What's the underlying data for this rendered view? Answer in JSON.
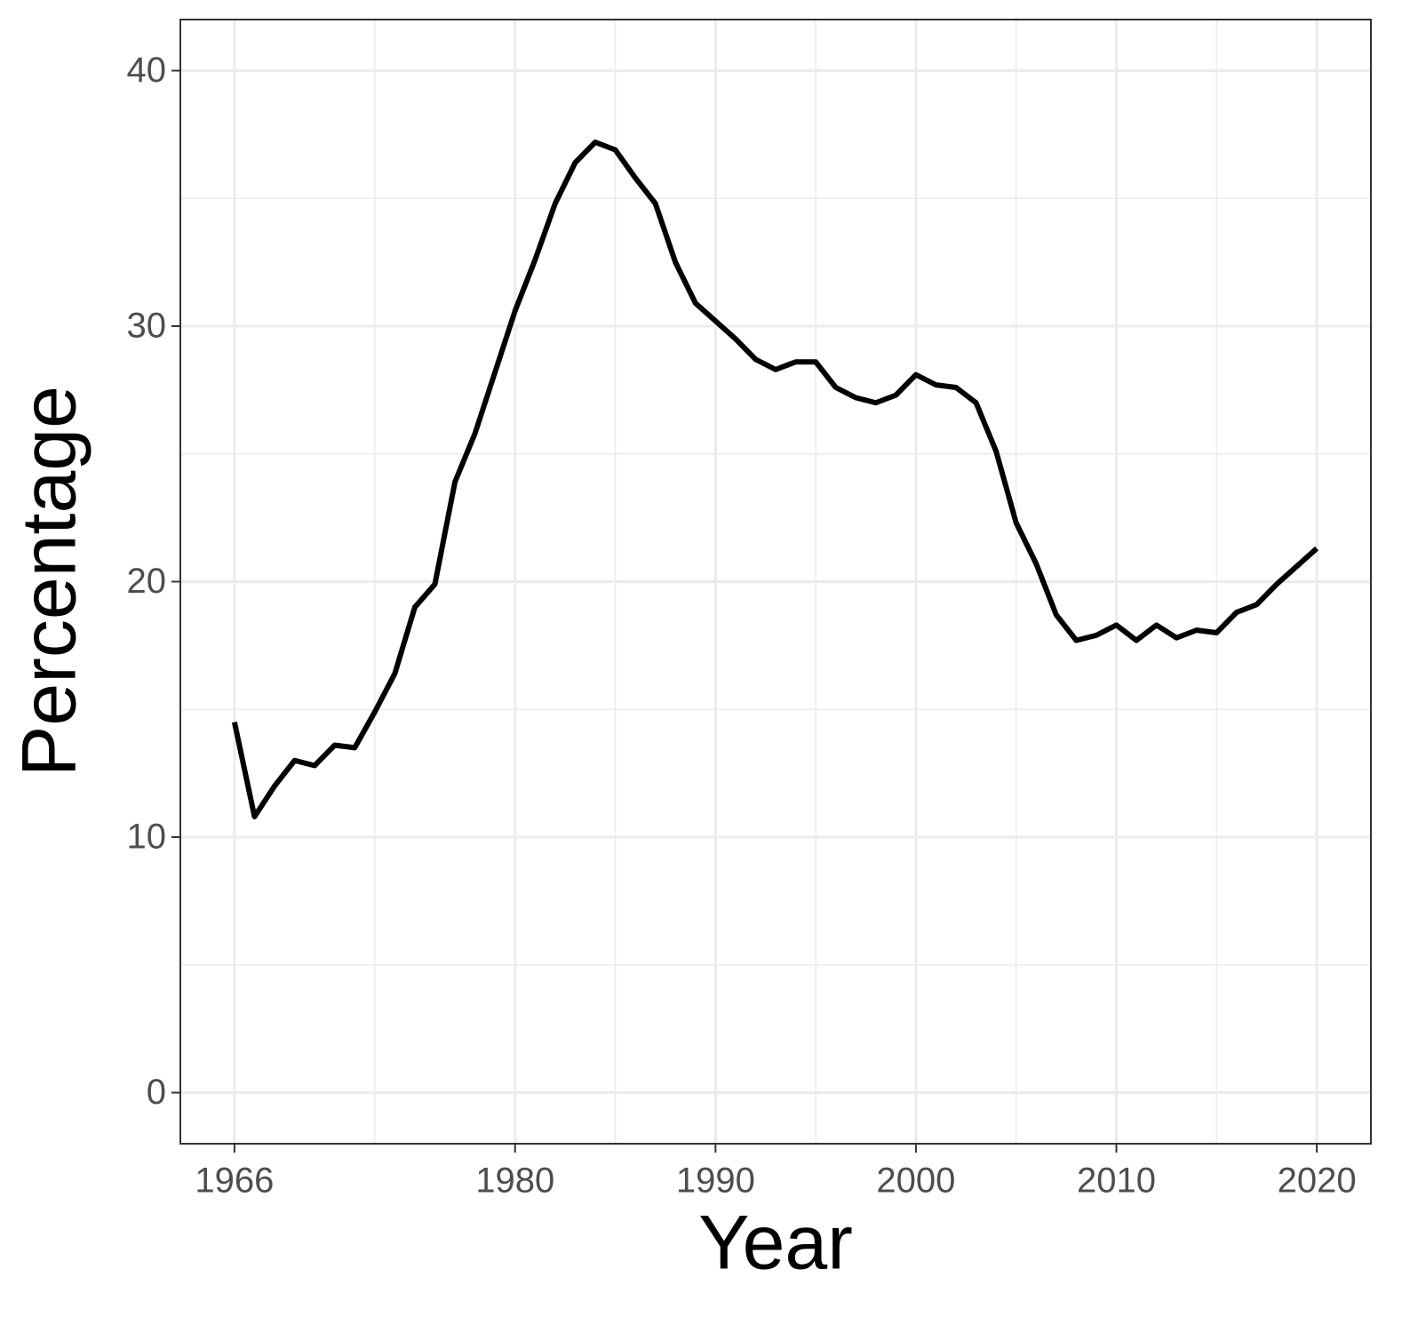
{
  "chart_data": {
    "type": "line",
    "x_label": "Year",
    "y_label": "Percentage",
    "x": [
      1966,
      1967,
      1968,
      1969,
      1970,
      1971,
      1972,
      1973,
      1974,
      1975,
      1976,
      1977,
      1978,
      1979,
      1980,
      1981,
      1982,
      1983,
      1984,
      1985,
      1986,
      1987,
      1988,
      1989,
      1990,
      1991,
      1992,
      1993,
      1994,
      1995,
      1996,
      1997,
      1998,
      1999,
      2000,
      2001,
      2002,
      2003,
      2004,
      2005,
      2006,
      2007,
      2008,
      2009,
      2010,
      2011,
      2012,
      2013,
      2014,
      2015,
      2016,
      2017,
      2018,
      2019,
      2020
    ],
    "values": [
      14.5,
      10.8,
      12.0,
      13.0,
      12.8,
      13.6,
      13.5,
      14.9,
      16.4,
      19.0,
      19.9,
      23.9,
      25.8,
      28.2,
      30.6,
      32.6,
      34.8,
      36.4,
      37.2,
      36.9,
      35.8,
      34.8,
      32.5,
      30.9,
      30.2,
      29.5,
      28.7,
      28.3,
      28.6,
      28.6,
      27.6,
      27.2,
      27.0,
      27.3,
      28.1,
      27.7,
      27.6,
      27.0,
      25.1,
      22.3,
      20.7,
      18.7,
      17.7,
      17.9,
      18.3,
      17.7,
      18.3,
      17.8,
      18.1,
      18.0,
      18.8,
      19.1,
      19.9,
      20.6,
      21.3
    ],
    "color": "#000000",
    "xlim": [
      1963.3,
      2022.7
    ],
    "ylim": [
      -2,
      42
    ],
    "xticks": [
      1966,
      1980,
      1990,
      2000,
      2010,
      2020
    ],
    "yticks": [
      0,
      10,
      20,
      30,
      40
    ],
    "x_minor_grid": [
      1973,
      1985,
      1995,
      2005,
      2015
    ],
    "y_minor_grid": [
      5,
      15,
      25,
      35
    ],
    "grid": true
  }
}
